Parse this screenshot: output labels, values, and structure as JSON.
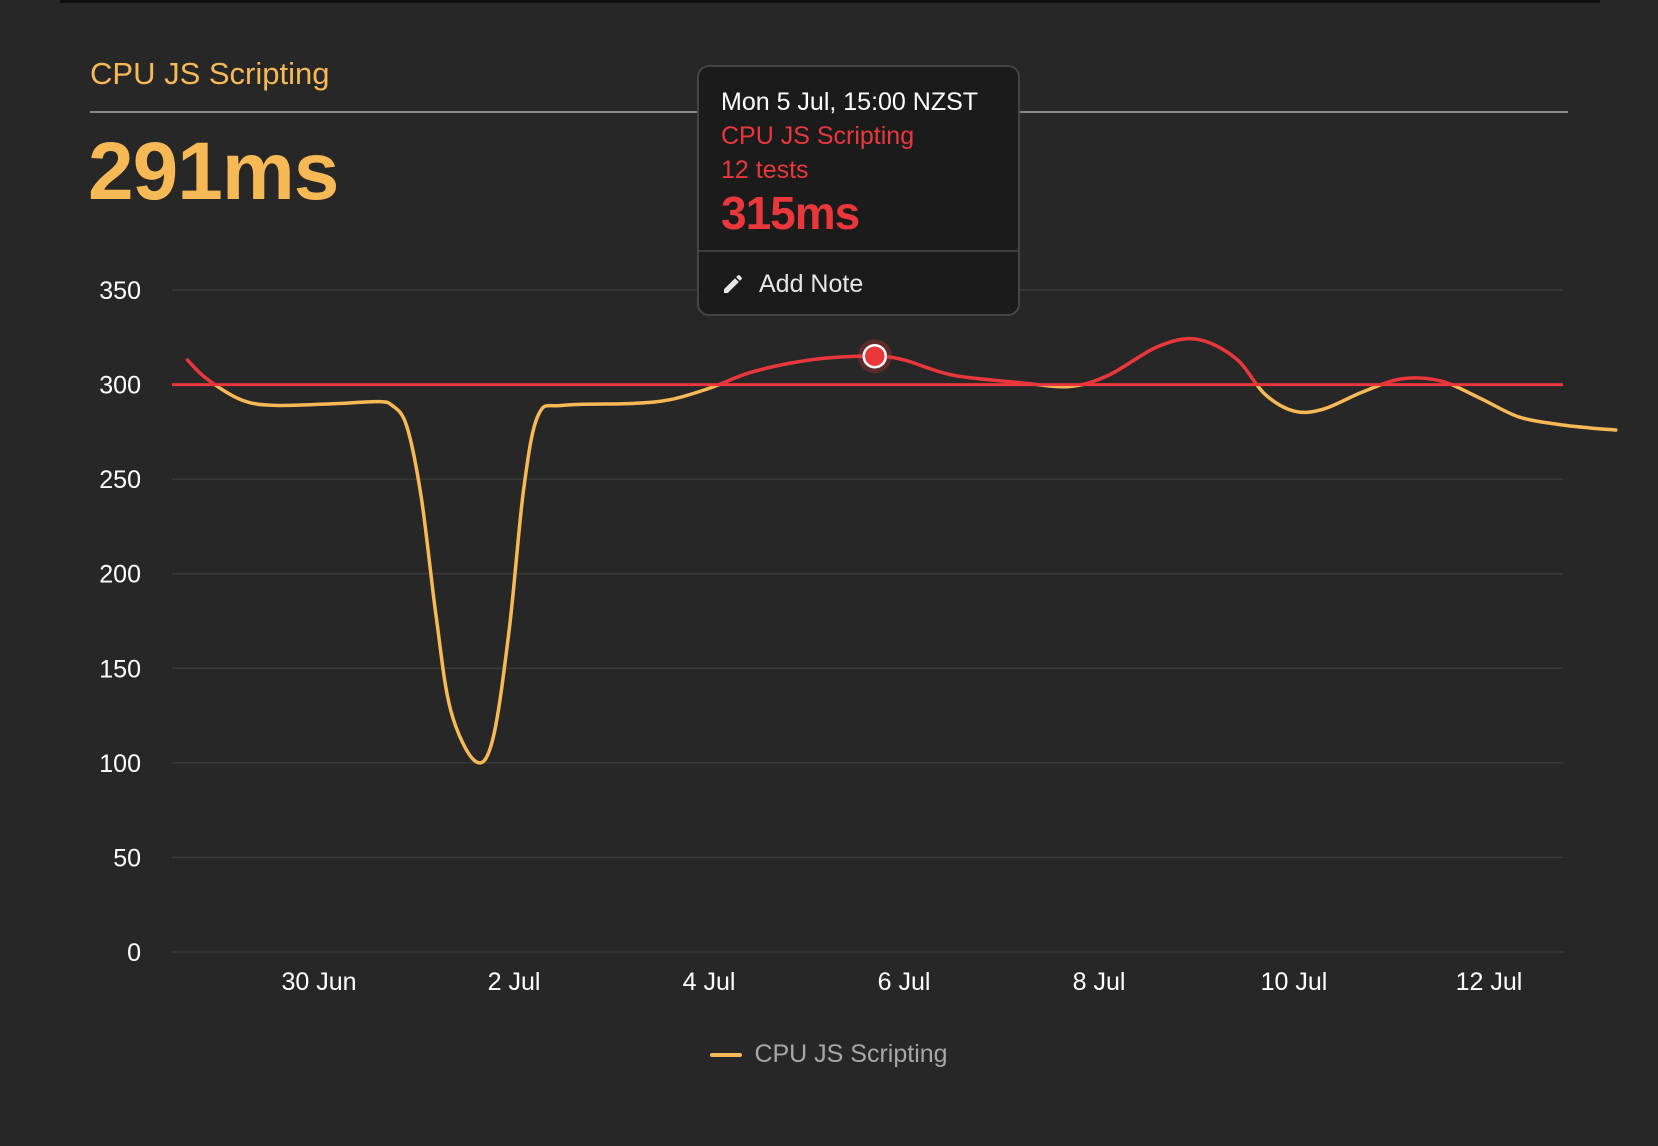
{
  "header": {
    "title": "CPU JS Scripting",
    "value": "291ms"
  },
  "tooltip": {
    "date": "Mon 5 Jul, 15:00 NZST",
    "series": "CPU JS Scripting",
    "tests": "12 tests",
    "value": "315ms",
    "add_note_label": "Add Note",
    "add_note_icon": "pencil-icon"
  },
  "legend": {
    "label": "CPU JS Scripting"
  },
  "colors": {
    "background": "#272727",
    "series": "#f7b955",
    "budget": "#e9373b",
    "gridline": "#3a3a3a",
    "tick_label": "#ffffff"
  },
  "chart_data": {
    "type": "line",
    "title": "CPU JS Scripting",
    "ylim": [
      0,
      350
    ],
    "y_ticks": [
      0,
      50,
      100,
      150,
      200,
      250,
      300,
      350
    ],
    "x_ticks": [
      "30 Jun",
      "2 Jul",
      "4 Jul",
      "6 Jul",
      "8 Jul",
      "10 Jul",
      "12 Jul"
    ],
    "x_unit": "days from 30 Jun",
    "xlim": [
      -1.5,
      12.8
    ],
    "grid": true,
    "legend_position": "bottom-center",
    "threshold": {
      "value": 300,
      "color": "#e9373b"
    },
    "series": [
      {
        "name": "CPU JS Scripting",
        "color": "#f7b955",
        "points": [
          [
            -1.35,
            313
          ],
          [
            -1.15,
            303
          ],
          [
            -0.8,
            292
          ],
          [
            -0.45,
            289
          ],
          [
            0.2,
            290
          ],
          [
            0.6,
            291
          ],
          [
            0.75,
            289
          ],
          [
            0.9,
            278
          ],
          [
            1.05,
            240
          ],
          [
            1.2,
            178
          ],
          [
            1.35,
            128
          ],
          [
            1.6,
            101
          ],
          [
            1.78,
            112
          ],
          [
            1.95,
            170
          ],
          [
            2.1,
            245
          ],
          [
            2.25,
            284
          ],
          [
            2.5,
            289
          ],
          [
            3.2,
            290
          ],
          [
            3.6,
            292
          ],
          [
            4.0,
            298
          ],
          [
            4.4,
            306
          ],
          [
            4.8,
            311
          ],
          [
            5.2,
            314
          ],
          [
            5.7,
            315
          ],
          [
            6.0,
            313
          ],
          [
            6.5,
            305
          ],
          [
            7.2,
            301
          ],
          [
            7.7,
            299
          ],
          [
            8.1,
            305
          ],
          [
            8.6,
            320
          ],
          [
            9.0,
            324
          ],
          [
            9.4,
            314
          ],
          [
            9.7,
            295
          ],
          [
            10.0,
            286
          ],
          [
            10.3,
            287
          ],
          [
            10.7,
            296
          ],
          [
            11.1,
            303
          ],
          [
            11.5,
            302
          ],
          [
            11.9,
            293
          ],
          [
            12.3,
            283
          ],
          [
            12.7,
            279
          ],
          [
            13.05,
            277
          ],
          [
            13.3,
            276
          ]
        ]
      }
    ],
    "highlight": {
      "x": 5.7,
      "y": 315
    }
  }
}
